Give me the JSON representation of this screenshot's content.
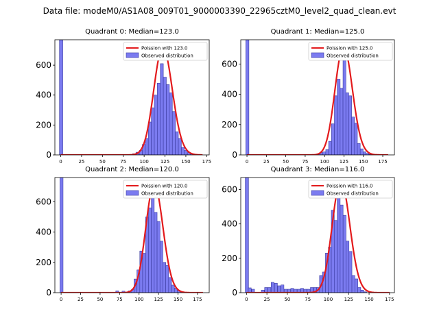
{
  "figure": {
    "suptitle": "Data file: modeM0/AS1A08_009T01_9000003390_22965cztM0_level2_quad_clean.evt"
  },
  "chart_data": [
    {
      "type": "bar",
      "title": "Quadrant 0: Median=123.0",
      "median": 123.0,
      "legend_location": "upper right",
      "legend": {
        "curve": "Poission with 123.0",
        "bars": "Observed distribution"
      },
      "xlim": [
        -7,
        178
      ],
      "ylim": [
        0,
        770
      ],
      "xticks": [
        0,
        25,
        50,
        75,
        100,
        125,
        150,
        175
      ],
      "yticks": [
        0,
        200,
        400,
        600
      ],
      "bin_width": 3.6,
      "bins": [
        {
          "x": 0.5,
          "count": 770
        },
        {
          "x": 88,
          "count": 8
        },
        {
          "x": 92,
          "count": 18
        },
        {
          "x": 96,
          "count": 30
        },
        {
          "x": 99.6,
          "count": 70
        },
        {
          "x": 103.2,
          "count": 110
        },
        {
          "x": 106.8,
          "count": 220
        },
        {
          "x": 110.4,
          "count": 315
        },
        {
          "x": 114,
          "count": 400
        },
        {
          "x": 117.6,
          "count": 480
        },
        {
          "x": 121.2,
          "count": 610
        },
        {
          "x": 124.8,
          "count": 520
        },
        {
          "x": 128.4,
          "count": 470
        },
        {
          "x": 132,
          "count": 415
        },
        {
          "x": 135.6,
          "count": 290
        },
        {
          "x": 139.2,
          "count": 155
        },
        {
          "x": 142.8,
          "count": 110
        },
        {
          "x": 146.4,
          "count": 50
        },
        {
          "x": 150,
          "count": 30
        },
        {
          "x": 153.6,
          "count": 15
        },
        {
          "x": 157.2,
          "count": 8
        },
        {
          "x": 160.8,
          "count": 3
        }
      ],
      "poisson_mean": 123.0,
      "poisson_scale": 720,
      "curve_x_range": [
        0,
        170
      ]
    },
    {
      "type": "bar",
      "title": "Quadrant 1: Median=125.0",
      "median": 125.0,
      "legend_location": "upper right",
      "legend": {
        "curve": "Poission with 125.0",
        "bars": "Observed distribution"
      },
      "xlim": [
        -8,
        190
      ],
      "ylim": [
        0,
        760
      ],
      "xticks": [
        0,
        25,
        50,
        75,
        100,
        125,
        150,
        175
      ],
      "yticks": [
        0,
        200,
        400,
        600
      ],
      "bin_width": 3.7,
      "bins": [
        {
          "x": 0.5,
          "count": 760
        },
        {
          "x": 92,
          "count": 8
        },
        {
          "x": 96,
          "count": 15
        },
        {
          "x": 99.7,
          "count": 20
        },
        {
          "x": 103.4,
          "count": 35
        },
        {
          "x": 107.1,
          "count": 90
        },
        {
          "x": 110.8,
          "count": 205
        },
        {
          "x": 114.5,
          "count": 390
        },
        {
          "x": 118.2,
          "count": 500
        },
        {
          "x": 121.9,
          "count": 440
        },
        {
          "x": 125.6,
          "count": 690
        },
        {
          "x": 129.3,
          "count": 410
        },
        {
          "x": 133,
          "count": 390
        },
        {
          "x": 136.7,
          "count": 250
        },
        {
          "x": 140.4,
          "count": 210
        },
        {
          "x": 144.1,
          "count": 75
        },
        {
          "x": 147.8,
          "count": 40
        },
        {
          "x": 151.5,
          "count": 20
        },
        {
          "x": 155.2,
          "count": 10
        },
        {
          "x": 158.9,
          "count": 4
        }
      ],
      "poisson_mean": 125.0,
      "poisson_scale": 715,
      "curve_x_range": [
        0,
        182
      ]
    },
    {
      "type": "bar",
      "title": "Quadrant 2: Median=120.0",
      "median": 120.0,
      "legend_location": "upper right",
      "legend": {
        "curve": "Poission with 120.0",
        "bars": "Observed distribution"
      },
      "xlim": [
        -8,
        190
      ],
      "ylim": [
        0,
        760
      ],
      "xticks": [
        0,
        25,
        50,
        75,
        100,
        125,
        150,
        175
      ],
      "yticks": [
        0,
        200,
        400,
        600
      ],
      "bin_width": 3.7,
      "bins": [
        {
          "x": 0.5,
          "count": 760
        },
        {
          "x": 72,
          "count": 12
        },
        {
          "x": 80,
          "count": 10
        },
        {
          "x": 88,
          "count": 12
        },
        {
          "x": 91.7,
          "count": 20
        },
        {
          "x": 95.4,
          "count": 90
        },
        {
          "x": 99.1,
          "count": 150
        },
        {
          "x": 102.8,
          "count": 275
        },
        {
          "x": 106.5,
          "count": 260
        },
        {
          "x": 110.2,
          "count": 500
        },
        {
          "x": 113.9,
          "count": 560
        },
        {
          "x": 117.6,
          "count": 710
        },
        {
          "x": 121.3,
          "count": 530
        },
        {
          "x": 125,
          "count": 470
        },
        {
          "x": 128.7,
          "count": 340
        },
        {
          "x": 132.4,
          "count": 200
        },
        {
          "x": 136.1,
          "count": 180
        },
        {
          "x": 139.8,
          "count": 100
        },
        {
          "x": 143.5,
          "count": 50
        },
        {
          "x": 147.2,
          "count": 30
        },
        {
          "x": 150.9,
          "count": 15
        },
        {
          "x": 154.6,
          "count": 5
        }
      ],
      "poisson_mean": 120.0,
      "poisson_scale": 715,
      "curve_x_range": [
        0,
        182
      ]
    },
    {
      "type": "bar",
      "title": "Quadrant 3: Median=116.0",
      "median": 116.0,
      "legend_location": "upper right",
      "legend": {
        "curve": "Poission with 116.0",
        "bars": "Observed distribution"
      },
      "xlim": [
        -7,
        181
      ],
      "ylim": [
        0,
        670
      ],
      "xticks": [
        0,
        25,
        50,
        75,
        100,
        125,
        150,
        175
      ],
      "yticks": [
        0,
        200,
        400,
        600
      ],
      "bin_width": 3.6,
      "bins": [
        {
          "x": 0.5,
          "count": 670
        },
        {
          "x": 4,
          "count": 28
        },
        {
          "x": 8,
          "count": 20
        },
        {
          "x": 20,
          "count": 15
        },
        {
          "x": 24,
          "count": 30
        },
        {
          "x": 28,
          "count": 30
        },
        {
          "x": 32,
          "count": 60
        },
        {
          "x": 36,
          "count": 55
        },
        {
          "x": 40,
          "count": 40
        },
        {
          "x": 44,
          "count": 45
        },
        {
          "x": 48,
          "count": 20
        },
        {
          "x": 52,
          "count": 20
        },
        {
          "x": 56,
          "count": 25
        },
        {
          "x": 60,
          "count": 20
        },
        {
          "x": 64,
          "count": 20
        },
        {
          "x": 68,
          "count": 25
        },
        {
          "x": 72,
          "count": 20
        },
        {
          "x": 76,
          "count": 20
        },
        {
          "x": 80,
          "count": 30
        },
        {
          "x": 84,
          "count": 30
        },
        {
          "x": 87.6,
          "count": 30
        },
        {
          "x": 91.2,
          "count": 100
        },
        {
          "x": 94.8,
          "count": 120
        },
        {
          "x": 98.4,
          "count": 230
        },
        {
          "x": 102,
          "count": 265
        },
        {
          "x": 105.6,
          "count": 480
        },
        {
          "x": 109.2,
          "count": 420
        },
        {
          "x": 112.8,
          "count": 615
        },
        {
          "x": 116.4,
          "count": 510
        },
        {
          "x": 120,
          "count": 450
        },
        {
          "x": 123.6,
          "count": 300
        },
        {
          "x": 127.2,
          "count": 240
        },
        {
          "x": 130.8,
          "count": 100
        },
        {
          "x": 134.4,
          "count": 80
        },
        {
          "x": 138,
          "count": 30
        },
        {
          "x": 141.6,
          "count": 15
        },
        {
          "x": 145.2,
          "count": 5
        }
      ],
      "poisson_mean": 116.0,
      "poisson_scale": 650,
      "curve_x_range": [
        0,
        175
      ]
    }
  ]
}
